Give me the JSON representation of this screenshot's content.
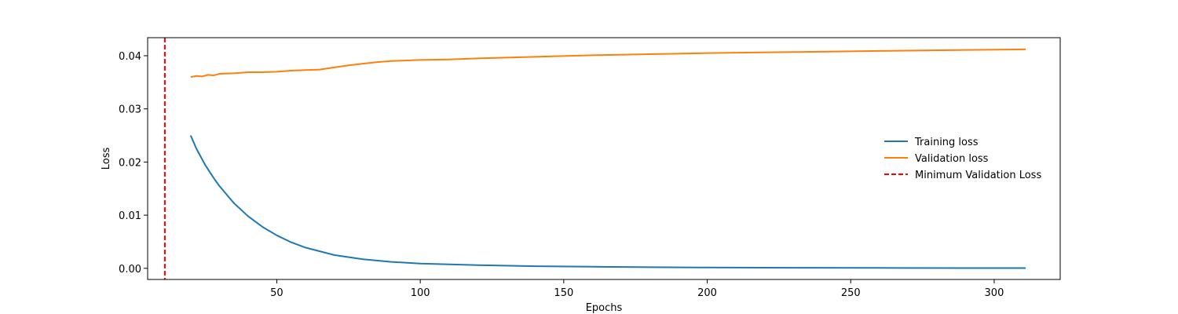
{
  "chart_data": {
    "type": "line",
    "title": "",
    "xlabel": "Epochs",
    "ylabel": "Loss",
    "xlim": [
      5,
      323
    ],
    "ylim": [
      -0.0021,
      0.0434
    ],
    "xticks": [
      50,
      100,
      150,
      200,
      250,
      300
    ],
    "xtick_labels": [
      "50",
      "100",
      "150",
      "200",
      "250",
      "300"
    ],
    "yticks": [
      0.0,
      0.01,
      0.02,
      0.03,
      0.04
    ],
    "ytick_labels": [
      "0.00",
      "0.01",
      "0.02",
      "0.03",
      "0.04"
    ],
    "grid": false,
    "legend_position": "center-right",
    "series": [
      {
        "name": "Training loss",
        "color": "#1f77b4",
        "style": "solid",
        "x": [
          20,
          22,
          25,
          28,
          30,
          35,
          40,
          45,
          50,
          55,
          60,
          70,
          80,
          90,
          100,
          120,
          140,
          160,
          180,
          200,
          230,
          260,
          290,
          311
        ],
        "y": [
          0.025,
          0.0225,
          0.0195,
          0.017,
          0.0155,
          0.0123,
          0.0098,
          0.0078,
          0.0062,
          0.0049,
          0.0039,
          0.0025,
          0.0017,
          0.0012,
          0.0009,
          0.0006,
          0.0004,
          0.0003,
          0.0002,
          0.00015,
          0.0001,
          7e-05,
          5e-05,
          4e-05
        ]
      },
      {
        "name": "Validation loss",
        "color": "#ff7f0e",
        "style": "solid",
        "x": [
          20,
          22,
          24,
          26,
          28,
          30,
          35,
          40,
          45,
          50,
          55,
          60,
          65,
          70,
          75,
          80,
          85,
          90,
          100,
          110,
          120,
          140,
          160,
          180,
          200,
          230,
          260,
          290,
          311
        ],
        "y": [
          0.036,
          0.0362,
          0.0361,
          0.0364,
          0.0363,
          0.0366,
          0.0367,
          0.0369,
          0.0369,
          0.037,
          0.0372,
          0.0373,
          0.0374,
          0.0378,
          0.0382,
          0.0385,
          0.0388,
          0.039,
          0.0392,
          0.0393,
          0.0395,
          0.0398,
          0.0401,
          0.0403,
          0.0405,
          0.0407,
          0.0409,
          0.0411,
          0.0412
        ]
      },
      {
        "name": "Minimum Validation Loss",
        "color": "#ff0000",
        "style": "dashed",
        "vline_x": 11
      }
    ]
  }
}
